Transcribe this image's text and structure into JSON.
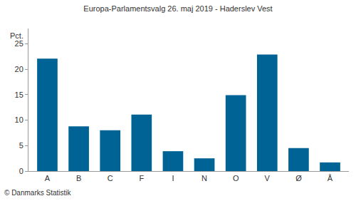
{
  "chart_data": {
    "type": "bar",
    "title": "Europa-Parlamentsvalg 26. maj 2019 - Haderslev Vest",
    "ylabel": "Pct.",
    "annotations": [
      "© Danmarks Statistik"
    ],
    "categories": [
      "A",
      "B",
      "C",
      "F",
      "I",
      "N",
      "O",
      "V",
      "Ø",
      "Å"
    ],
    "values": [
      22.1,
      8.8,
      8.0,
      11.1,
      3.9,
      2.5,
      14.9,
      22.9,
      4.5,
      1.7
    ],
    "color": "#006395",
    "ylim": [
      0,
      28
    ],
    "yticks": [
      0,
      5,
      10,
      15,
      20,
      25
    ],
    "grid": false
  }
}
